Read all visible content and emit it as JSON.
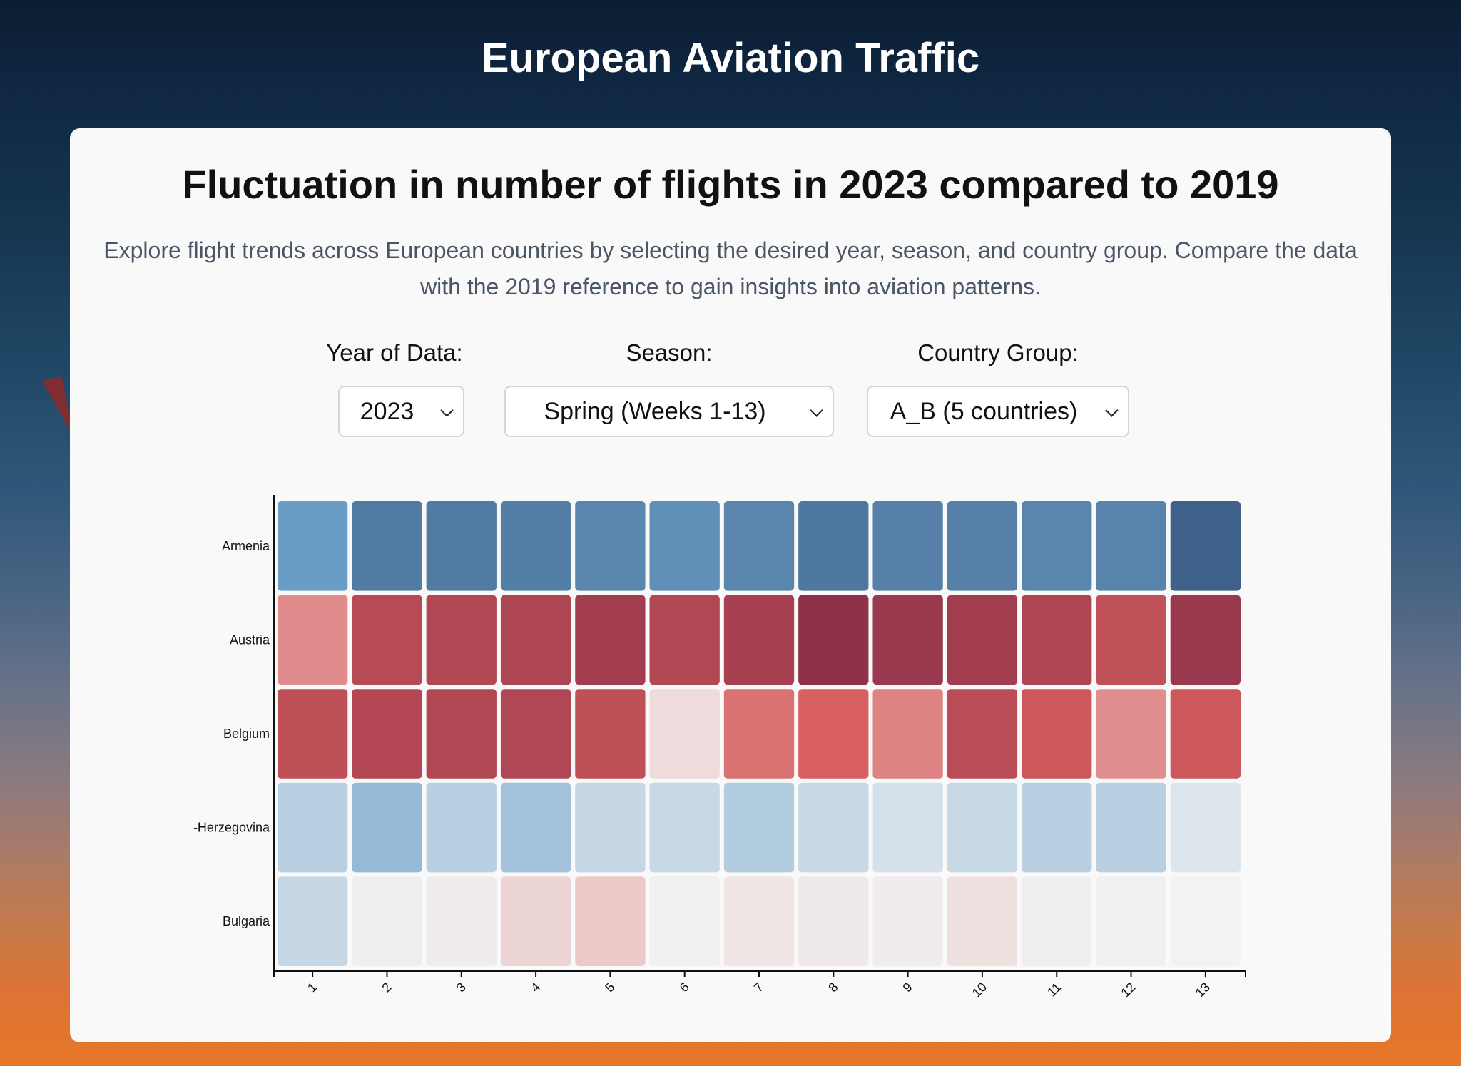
{
  "header": {
    "app_title": "European Aviation Traffic"
  },
  "card": {
    "title": "Fluctuation in number of flights in 2023 compared to 2019",
    "description": "Explore flight trends across European countries by selecting the desired year, season, and country group. Compare the data with the 2019 reference to gain insights into aviation patterns."
  },
  "controls": {
    "year": {
      "label": "Year of Data:",
      "value": "2023"
    },
    "season": {
      "label": "Season:",
      "value": "Spring (Weeks 1-13)"
    },
    "group": {
      "label": "Country Group:",
      "value": "A_B (5 countries)"
    },
    "chevron_icon": "chevron-down-icon"
  },
  "chart_data": {
    "type": "heatmap",
    "title": "",
    "xlabel": "",
    "ylabel": "",
    "x": [
      "1",
      "2",
      "3",
      "4",
      "5",
      "6",
      "7",
      "8",
      "9",
      "10",
      "11",
      "12",
      "13"
    ],
    "y": [
      "Armenia",
      "Austria",
      "Belgium",
      "-Herzegovina",
      "Bulgaria"
    ],
    "values": [
      [
        0.55,
        0.78,
        0.78,
        0.76,
        0.7,
        0.64,
        0.7,
        0.8,
        0.74,
        0.74,
        0.7,
        0.72,
        0.95
      ],
      [
        -0.35,
        -0.72,
        -0.75,
        -0.78,
        -0.85,
        -0.75,
        -0.82,
        -0.98,
        -0.9,
        -0.86,
        -0.78,
        -0.65,
        -0.9
      ],
      [
        -0.66,
        -0.74,
        -0.75,
        -0.76,
        -0.66,
        -0.08,
        -0.44,
        -0.5,
        -0.38,
        -0.7,
        -0.58,
        -0.34,
        -0.58
      ],
      [
        0.22,
        0.36,
        0.22,
        0.31,
        0.17,
        0.16,
        0.24,
        0.16,
        0.11,
        0.16,
        0.22,
        0.22,
        0.08
      ],
      [
        0.17,
        0.02,
        -0.02,
        -0.1,
        -0.14,
        0.01,
        -0.04,
        -0.03,
        -0.02,
        -0.06,
        0.02,
        0.01,
        0.0
      ]
    ],
    "color_scale": "diverging RdBu (red = negative, blue = positive)",
    "colors": {
      "strong_red": "#8b2f48",
      "neutral": "#f2f2f2",
      "strong_blue": "#3a5a82"
    },
    "x_tick_rotation": "-45deg",
    "grid": false,
    "legend": "none"
  }
}
